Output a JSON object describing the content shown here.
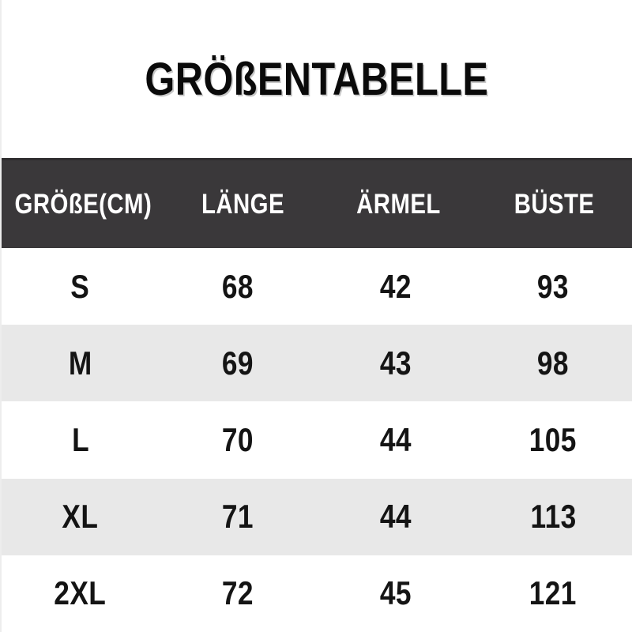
{
  "title": "GRÖßENTABELLE",
  "table": {
    "headers": [
      "GRÖßE(CM)",
      "LÄNGE",
      "ÄRMEL",
      "BÜSTE"
    ],
    "rows": [
      [
        "S",
        "68",
        "42",
        "93"
      ],
      [
        "M",
        "69",
        "43",
        "98"
      ],
      [
        "L",
        "70",
        "44",
        "105"
      ],
      [
        "XL",
        "71",
        "44",
        "113"
      ],
      [
        "2XL",
        "72",
        "45",
        "121"
      ]
    ]
  },
  "chart_data": {
    "type": "table",
    "title": "GRÖßENTABELLE",
    "unit": "cm",
    "columns": [
      "GRÖßE(CM)",
      "LÄNGE",
      "ÄRMEL",
      "BÜSTE"
    ],
    "rows": [
      {
        "groesse": "S",
        "laenge": 68,
        "aermel": 42,
        "bueste": 93
      },
      {
        "groesse": "M",
        "laenge": 69,
        "aermel": 43,
        "bueste": 98
      },
      {
        "groesse": "L",
        "laenge": 70,
        "aermel": 44,
        "bueste": 105
      },
      {
        "groesse": "XL",
        "laenge": 71,
        "aermel": 44,
        "bueste": 113
      },
      {
        "groesse": "2XL",
        "laenge": 72,
        "aermel": 45,
        "bueste": 121
      }
    ]
  },
  "colors": {
    "header_background": "#3a383a",
    "header_text": "#ffffff",
    "row_alt_background": "#e8e8e8",
    "row_background": "#ffffff",
    "text": "#141414"
  }
}
